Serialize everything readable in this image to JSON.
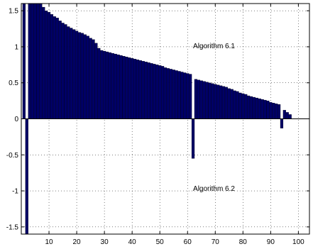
{
  "chart_data": {
    "type": "bar",
    "title": "",
    "xlabel": "",
    "ylabel": "",
    "xlim": [
      0,
      104
    ],
    "ylim": [
      -1.6,
      1.6
    ],
    "grid": true,
    "bar_color": "#000066",
    "edge_color": "#000000",
    "x_ticks": [
      10,
      20,
      30,
      40,
      50,
      60,
      70,
      80,
      90,
      100
    ],
    "y_ticks": [
      -1.5,
      -1,
      -0.5,
      0,
      0.5,
      1,
      1.5
    ],
    "y_tick_labels": [
      "-1.5",
      "-1",
      "-0.5",
      "0",
      "0.5",
      "1",
      "1.5"
    ],
    "annotations": [
      {
        "text": "Algorithm 6.1",
        "x": 62,
        "y": 0.98
      },
      {
        "text": "Algorithm 6.2",
        "x": 62,
        "y": -1.0
      }
    ],
    "series": [
      {
        "x": [
          1,
          2,
          3,
          4,
          5,
          6,
          7,
          8,
          9,
          10,
          11,
          12,
          13,
          14,
          15,
          16,
          17,
          18,
          19,
          20,
          21,
          22,
          23,
          24,
          25,
          26,
          27,
          28,
          29,
          30,
          31,
          32,
          33,
          34,
          35,
          36,
          37,
          38,
          39,
          40,
          41,
          42,
          43,
          44,
          45,
          46,
          47,
          48,
          49,
          50,
          51,
          52,
          53,
          54,
          55,
          56,
          57,
          58,
          59,
          60,
          61,
          62,
          63,
          64,
          65,
          66,
          67,
          68,
          69,
          70,
          71,
          72,
          73,
          74,
          75,
          76,
          77,
          78,
          79,
          80,
          81,
          82,
          83,
          84,
          85,
          86,
          87,
          88,
          89,
          90,
          91,
          92,
          93,
          94,
          95,
          96,
          97
        ],
        "values": [
          1.6,
          0,
          1.6,
          1.6,
          1.6,
          1.6,
          1.6,
          1.55,
          1.5,
          1.48,
          1.45,
          1.42,
          1.4,
          1.36,
          1.33,
          1.31,
          1.28,
          1.26,
          1.24,
          1.22,
          1.2,
          1.19,
          1.17,
          1.15,
          1.12,
          1.1,
          1.05,
          0.98,
          0.95,
          0.94,
          0.93,
          0.92,
          0.91,
          0.9,
          0.89,
          0.88,
          0.87,
          0.86,
          0.85,
          0.84,
          0.83,
          0.82,
          0.81,
          0.8,
          0.79,
          0.78,
          0.77,
          0.76,
          0.75,
          0.74,
          0.73,
          0.71,
          0.7,
          0.69,
          0.68,
          0.67,
          0.66,
          0.65,
          0.64,
          0.63,
          0.62,
          0,
          0.55,
          0.54,
          0.53,
          0.52,
          0.51,
          0.5,
          0.49,
          0.48,
          0.47,
          0.46,
          0.45,
          0.44,
          0.42,
          0.41,
          0.39,
          0.38,
          0.36,
          0.35,
          0.34,
          0.32,
          0.31,
          0.3,
          0.29,
          0.28,
          0.27,
          0.26,
          0.25,
          0.23,
          0.22,
          0.21,
          0.2,
          0,
          0.12,
          0.09,
          0.06
        ]
      },
      {
        "x": [
          2,
          62,
          94
        ],
        "values": [
          -1.6,
          -0.55,
          -0.13
        ]
      }
    ]
  }
}
